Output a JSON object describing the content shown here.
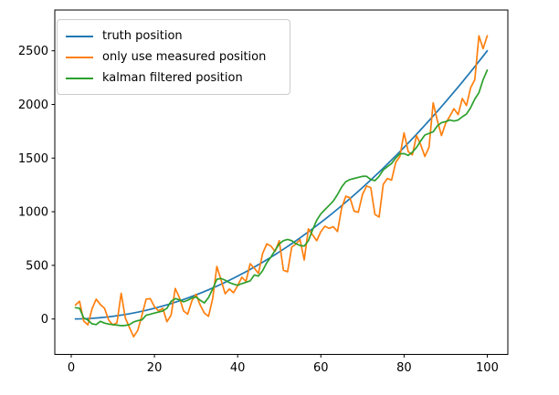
{
  "figure": {
    "background": "#ffffff"
  },
  "chart_data": {
    "type": "line",
    "title": "",
    "xlabel": "",
    "ylabel": "",
    "grid": false,
    "legend_position": "upper left",
    "xlim": [
      -3.95,
      104.95
    ],
    "ylim": [
      -330,
      2880
    ],
    "x_ticks": [
      0,
      20,
      40,
      60,
      80,
      100
    ],
    "y_ticks": [
      0,
      500,
      1000,
      1500,
      2000,
      2500
    ],
    "axis_color": "#000000",
    "x": [
      1,
      2,
      3,
      4,
      5,
      6,
      7,
      8,
      9,
      10,
      11,
      12,
      13,
      14,
      15,
      16,
      17,
      18,
      19,
      20,
      21,
      22,
      23,
      24,
      25,
      26,
      27,
      28,
      29,
      30,
      31,
      32,
      33,
      34,
      35,
      36,
      37,
      38,
      39,
      40,
      41,
      42,
      43,
      44,
      45,
      46,
      47,
      48,
      49,
      50,
      51,
      52,
      53,
      54,
      55,
      56,
      57,
      58,
      59,
      60,
      61,
      62,
      63,
      64,
      65,
      66,
      67,
      68,
      69,
      70,
      71,
      72,
      73,
      74,
      75,
      76,
      77,
      78,
      79,
      80,
      81,
      82,
      83,
      84,
      85,
      86,
      87,
      88,
      89,
      90,
      91,
      92,
      93,
      94,
      95,
      96,
      97,
      98,
      99,
      100
    ],
    "series": [
      {
        "name": "truth position",
        "color": "#1f77b4",
        "values": [
          0.25,
          1,
          2.25,
          4,
          6.25,
          9,
          12.25,
          16,
          20.25,
          25,
          30.25,
          36,
          42.25,
          49,
          56.25,
          64,
          72.25,
          81,
          90.25,
          100,
          110.25,
          121,
          132.25,
          144,
          156.25,
          169,
          182.25,
          196,
          210.25,
          225,
          240.25,
          256,
          272.25,
          289,
          306.25,
          324,
          342.25,
          361,
          380.25,
          400,
          420.25,
          441,
          462.25,
          484,
          506.25,
          529,
          552.25,
          576,
          600.25,
          625,
          650.25,
          676,
          702.25,
          729,
          756.25,
          784,
          812.25,
          841,
          870.25,
          900,
          930.25,
          961,
          992.25,
          1024,
          1056.25,
          1089,
          1122.25,
          1156,
          1190.25,
          1225,
          1260.25,
          1296,
          1332.25,
          1369,
          1406.25,
          1444,
          1482.25,
          1521,
          1560.25,
          1600,
          1640.25,
          1681,
          1722.25,
          1764,
          1806.25,
          1849,
          1892.25,
          1936,
          1980.25,
          2025,
          2070.25,
          2116,
          2162.25,
          2209,
          2256.25,
          2304,
          2352.25,
          2401,
          2450.25,
          2500
        ]
      },
      {
        "name": "only use measured position",
        "color": "#ff7f0e",
        "values": [
          130,
          165,
          -20,
          -55,
          95,
          185,
          135,
          100,
          -10,
          -55,
          -35,
          240,
          10,
          -80,
          -165,
          -105,
          35,
          185,
          190,
          115,
          75,
          100,
          -25,
          35,
          285,
          200,
          75,
          45,
          170,
          230,
          130,
          55,
          25,
          190,
          490,
          365,
          235,
          280,
          245,
          310,
          390,
          350,
          515,
          475,
          425,
          610,
          700,
          680,
          630,
          730,
          455,
          440,
          670,
          700,
          740,
          550,
          840,
          785,
          730,
          815,
          865,
          845,
          860,
          815,
          1035,
          1145,
          1130,
          1005,
          995,
          1160,
          1240,
          1225,
          975,
          950,
          1255,
          1310,
          1295,
          1460,
          1515,
          1735,
          1560,
          1530,
          1710,
          1625,
          1515,
          1600,
          2015,
          1850,
          1710,
          1825,
          1890,
          1960,
          1905,
          2055,
          1990,
          2155,
          2230,
          2640,
          2520,
          2640
        ]
      },
      {
        "name": "kalman filtered position",
        "color": "#2ca02c",
        "values": [
          105,
          100,
          10,
          -10,
          -45,
          -52,
          -22,
          -38,
          -47,
          -52,
          -57,
          -62,
          -60,
          -52,
          -28,
          -15,
          -8,
          35,
          45,
          55,
          65,
          75,
          100,
          165,
          190,
          180,
          160,
          175,
          195,
          205,
          175,
          150,
          200,
          280,
          370,
          378,
          362,
          340,
          325,
          315,
          330,
          342,
          355,
          410,
          400,
          450,
          525,
          578,
          640,
          700,
          730,
          742,
          730,
          702,
          685,
          680,
          730,
          830,
          920,
          980,
          1020,
          1060,
          1100,
          1160,
          1230,
          1280,
          1300,
          1310,
          1320,
          1330,
          1330,
          1300,
          1290,
          1330,
          1390,
          1420,
          1450,
          1500,
          1540,
          1542,
          1525,
          1555,
          1600,
          1660,
          1715,
          1730,
          1745,
          1800,
          1830,
          1840,
          1855,
          1845,
          1855,
          1885,
          1910,
          1970,
          2050,
          2110,
          2230,
          2320
        ]
      }
    ]
  }
}
